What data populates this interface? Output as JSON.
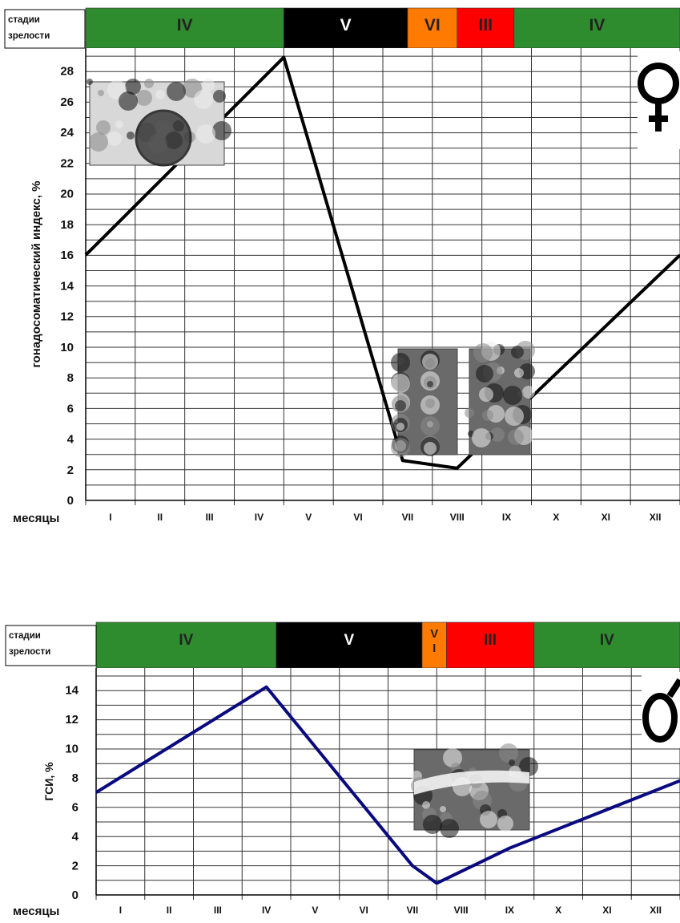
{
  "chart_data": [
    {
      "type": "line",
      "sex": "female",
      "sex_symbol_icon": "female-symbol-icon",
      "stages_label": "стадии зрелости",
      "stages_label_lines": [
        "стадии",
        "зрелости"
      ],
      "stages": [
        {
          "label": "IV",
          "from_month": 0,
          "to_month": 4.0,
          "color": "#2e8b2e",
          "text_color": "#222222"
        },
        {
          "label": "V",
          "from_month": 4.0,
          "to_month": 6.5,
          "color": "#000000",
          "text_color": "#ffffff"
        },
        {
          "label": "VI",
          "from_month": 6.5,
          "to_month": 7.5,
          "color": "#ff7a00",
          "text_color": "#222222"
        },
        {
          "label": "III",
          "from_month": 7.5,
          "to_month": 8.65,
          "color": "#ff0000",
          "text_color": "#222222"
        },
        {
          "label": "IV",
          "from_month": 8.65,
          "to_month": 12,
          "color": "#2e8b2e",
          "text_color": "#222222"
        }
      ],
      "ylabel": "гонадосоматический индекс, %",
      "xlabel": "месяцы",
      "categories": [
        "I",
        "II",
        "III",
        "IV",
        "V",
        "VI",
        "VII",
        "VIII",
        "IX",
        "X",
        "XI",
        "XII"
      ],
      "yticks": [
        "0",
        "2",
        "4",
        "6",
        "8",
        "10",
        "12",
        "14",
        "16",
        "18",
        "20",
        "22",
        "24",
        "26",
        "28"
      ],
      "ylim": [
        0,
        29.5
      ],
      "grid": true,
      "series": [
        {
          "color": "#000000",
          "points": [
            [
              0,
              16
            ],
            [
              4.0,
              28.9
            ],
            [
              6.4,
              2.6
            ],
            [
              7.5,
              2.1
            ],
            [
              12,
              16.0
            ]
          ]
        }
      ],
      "insets": [
        {
          "icon": "histology-photo",
          "count": 1
        },
        {
          "icon": "histology-photo",
          "count": 2
        }
      ]
    },
    {
      "type": "line",
      "sex": "male",
      "sex_symbol_icon": "male-symbol-icon",
      "stages_label": "стадии зрелости",
      "stages_label_lines": [
        "стадии",
        "зрелости"
      ],
      "stages": [
        {
          "label": "IV",
          "from_month": 0,
          "to_month": 3.7,
          "color": "#2e8b2e",
          "text_color": "#222222"
        },
        {
          "label": "V",
          "from_month": 3.7,
          "to_month": 6.7,
          "color": "#000000",
          "text_color": "#ffffff"
        },
        {
          "label": "V I",
          "from_month": 6.7,
          "to_month": 7.2,
          "color": "#ff7a00",
          "text_color": "#222222"
        },
        {
          "label": "III",
          "from_month": 7.2,
          "to_month": 9.0,
          "color": "#ff0000",
          "text_color": "#222222"
        },
        {
          "label": "IV",
          "from_month": 9.0,
          "to_month": 12,
          "color": "#2e8b2e",
          "text_color": "#222222"
        }
      ],
      "ylabel": "ГСИ, %",
      "xlabel": "месяцы",
      "categories": [
        "I",
        "II",
        "III",
        "IV",
        "V",
        "VI",
        "VII",
        "VIII",
        "IX",
        "X",
        "XI",
        "XII"
      ],
      "yticks": [
        "0",
        "2",
        "4",
        "6",
        "8",
        "10",
        "12",
        "14"
      ],
      "ylim": [
        0,
        15.5
      ],
      "grid": true,
      "series": [
        {
          "color": "#0a0a80",
          "points": [
            [
              0,
              7.0
            ],
            [
              3.5,
              14.2
            ],
            [
              6.5,
              2.0
            ],
            [
              7.0,
              0.8
            ],
            [
              8.5,
              3.2
            ],
            [
              12,
              7.8
            ]
          ]
        }
      ],
      "insets": [
        {
          "icon": "histology-photo",
          "count": 1
        }
      ]
    }
  ]
}
